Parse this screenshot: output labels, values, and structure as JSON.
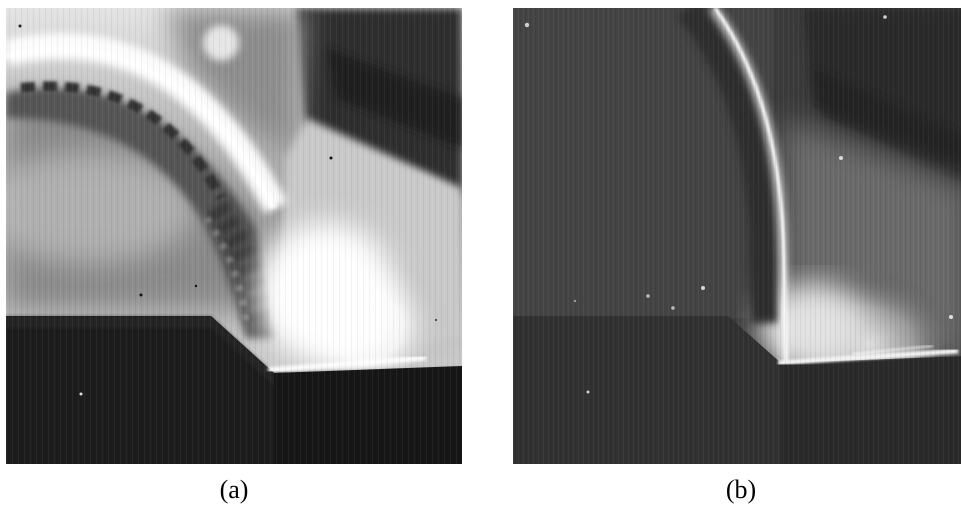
{
  "figure": {
    "panels": [
      {
        "id": "a",
        "caption": "(a)"
      },
      {
        "id": "b",
        "caption": "(b)"
      }
    ]
  }
}
